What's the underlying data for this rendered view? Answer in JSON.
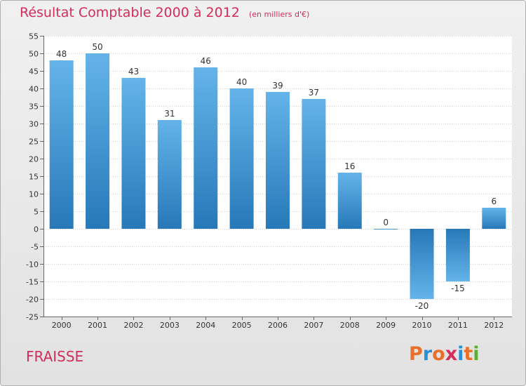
{
  "header": {
    "title": "Résultat Comptable 2000 à 2012",
    "unit": "(en milliers d'€)"
  },
  "footer": {
    "commune": "FRAISSE",
    "logo_text": "Proxiti",
    "logo_colors": [
      "#e8702a",
      "#2a8fd6",
      "#e8702a",
      "#d32d5a",
      "#2a8fd6",
      "#e8702a",
      "#5cb030"
    ]
  },
  "colors": {
    "accent": "#d32d5a",
    "bar_light": "#64b4ea",
    "bar_dark": "#2778b8"
  },
  "chart_data": {
    "type": "bar",
    "title": "Résultat Comptable 2000 à 2012",
    "subtitle": "(en milliers d'€)",
    "xlabel": "",
    "ylabel": "",
    "categories": [
      "2000",
      "2001",
      "2002",
      "2003",
      "2004",
      "2005",
      "2006",
      "2007",
      "2008",
      "2009",
      "2010",
      "2011",
      "2012"
    ],
    "values": [
      48,
      50,
      43,
      31,
      46,
      40,
      39,
      37,
      16,
      0,
      -20,
      -15,
      6
    ],
    "value_labels": [
      "48",
      "50",
      "43",
      "31",
      "46",
      "40",
      "39",
      "37",
      "16",
      "0",
      "-20",
      "-15",
      "6"
    ],
    "ylim": [
      -25,
      55
    ],
    "yticks": [
      55,
      50,
      45,
      40,
      35,
      30,
      25,
      20,
      15,
      10,
      5,
      0,
      -5,
      -10,
      -15,
      -20,
      -25
    ],
    "ytick_labels": [
      "55",
      "50",
      "45",
      "40",
      "35",
      "30",
      "25",
      "20",
      "15",
      "10",
      "5",
      "0",
      "-5",
      "-10",
      "-15",
      "-20",
      "-25"
    ],
    "grid": true,
    "legend": "none"
  }
}
